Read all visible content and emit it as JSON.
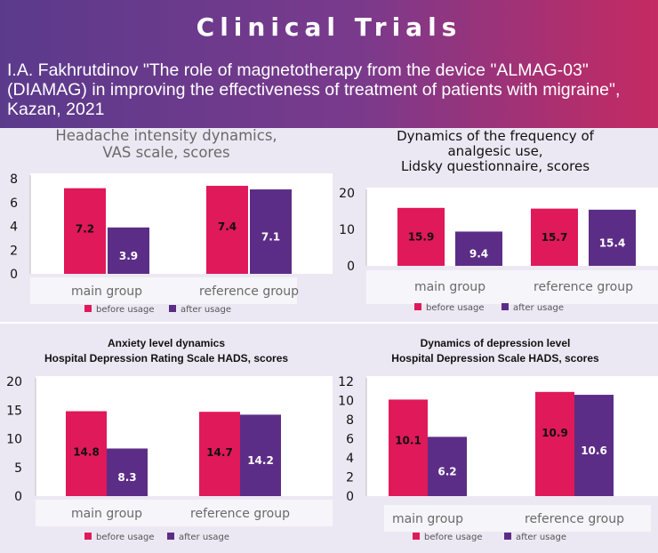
{
  "header": {
    "title": "Clinical Trials",
    "subtitle": "I.A. Fakhrutdinov \"The role of magnetotherapy from the device \"ALMAG-03\" (DIAMAG) in improving the effectiveness of treatment of patients with migraine\", Kazan, 2021"
  },
  "colors": {
    "before": "#e0195a",
    "after": "#5c2d86",
    "panel_bg": "#ece8f3"
  },
  "chart_data": [
    {
      "type": "bar",
      "title": "Headache intensity dynamics,\nVAS scale, scores",
      "categories": [
        "main group",
        "reference group"
      ],
      "series": [
        {
          "name": "before usage",
          "values": [
            7.2,
            7.4
          ]
        },
        {
          "name": "after usage",
          "values": [
            3.9,
            7.1
          ]
        }
      ],
      "ylim": [
        0,
        8
      ],
      "yticks": [
        0,
        2,
        4,
        6,
        8
      ],
      "legend": "bottom"
    },
    {
      "type": "bar",
      "title": "Dynamics of the frequency of\nanalgesic use,\nLidsky questionnaire, scores",
      "categories": [
        "main group",
        "reference group"
      ],
      "series": [
        {
          "name": "before usage",
          "values": [
            15.9,
            15.7
          ]
        },
        {
          "name": "after usage",
          "values": [
            9.4,
            15.4
          ]
        }
      ],
      "ylim": [
        0,
        20
      ],
      "yticks": [
        0,
        10,
        20
      ],
      "legend": "bottom"
    },
    {
      "type": "bar",
      "title": "Anxiety level dynamics\nHospital Depression Rating Scale HADS, scores",
      "categories": [
        "main group",
        "reference group"
      ],
      "series": [
        {
          "name": "before usage",
          "values": [
            14.8,
            14.7
          ]
        },
        {
          "name": "after usage",
          "values": [
            8.3,
            14.2
          ]
        }
      ],
      "ylim": [
        0,
        20
      ],
      "yticks": [
        0,
        5,
        10,
        15,
        20
      ],
      "legend": "bottom"
    },
    {
      "type": "bar",
      "title": "Dynamics of depression level\nHospital Depression Scale HADS, scores",
      "categories": [
        "main group",
        "reference group"
      ],
      "series": [
        {
          "name": "before usage",
          "values": [
            10.1,
            10.9
          ]
        },
        {
          "name": "after usage",
          "values": [
            6.2,
            10.6
          ]
        }
      ],
      "ylim": [
        0,
        12
      ],
      "yticks": [
        0,
        2,
        4,
        6,
        8,
        10,
        12
      ],
      "legend": "bottom"
    }
  ]
}
